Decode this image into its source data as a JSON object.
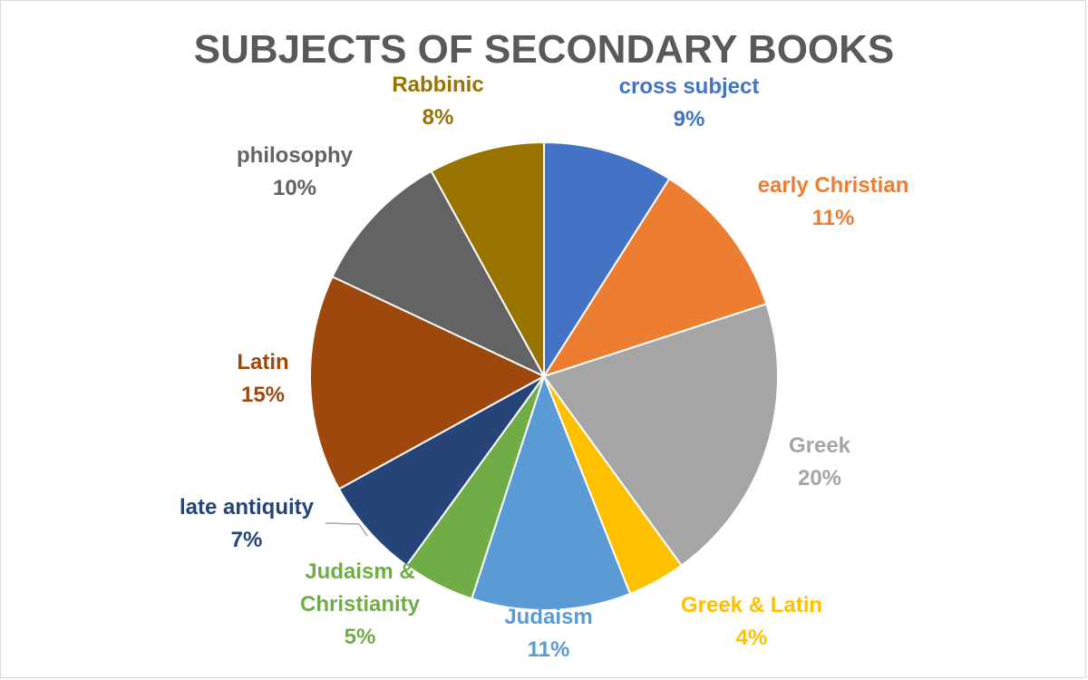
{
  "chart_data": {
    "type": "pie",
    "title": "SUBJECTS OF SECONDARY BOOKS",
    "slices": [
      {
        "label": "cross subject",
        "value": 9,
        "percent_label": "9%",
        "color": "#4472C4",
        "label_color": "#4472C4"
      },
      {
        "label": "early Christian",
        "value": 11,
        "percent_label": "11%",
        "color": "#ED7D31",
        "label_color": "#ED7D31"
      },
      {
        "label": "Greek",
        "value": 20,
        "percent_label": "20%",
        "color": "#A5A5A5",
        "label_color": "#A5A5A5"
      },
      {
        "label": "Greek & Latin",
        "value": 4,
        "percent_label": "4%",
        "color": "#FFC000",
        "label_color": "#FFC000"
      },
      {
        "label": "Judaism",
        "value": 11,
        "percent_label": "11%",
        "color": "#5B9BD5",
        "label_color": "#5B9BD5"
      },
      {
        "label": "Judaism & Christianity",
        "value": 5,
        "percent_label": "5%",
        "color": "#70AD47",
        "label_color": "#70AD47"
      },
      {
        "label": "late antiquity",
        "value": 7,
        "percent_label": "7%",
        "color": "#264478",
        "label_color": "#264478"
      },
      {
        "label": "Latin",
        "value": 15,
        "percent_label": "15%",
        "color": "#9E480E",
        "label_color": "#9E480E"
      },
      {
        "label": "philosophy",
        "value": 10,
        "percent_label": "10%",
        "color": "#636363",
        "label_color": "#636363"
      },
      {
        "label": "Rabbinic",
        "value": 8,
        "percent_label": "8%",
        "color": "#997300",
        "label_color": "#997300"
      }
    ],
    "legend": "none",
    "start_angle": "12 o'clock",
    "direction": "clockwise"
  }
}
